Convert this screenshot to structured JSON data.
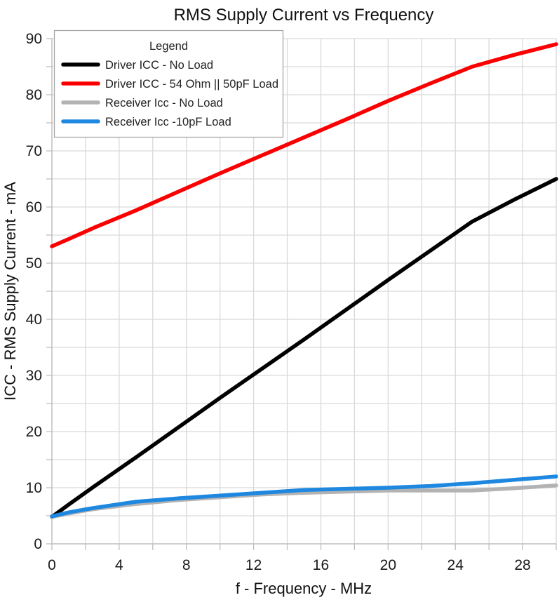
{
  "chart_data": {
    "type": "line",
    "title": "RMS Supply Current vs Frequency",
    "xlabel": "f - Frequency - MHz",
    "ylabel": "ICC - RMS Supply Current - mA",
    "xlim": [
      0,
      30
    ],
    "ylim": [
      0,
      90
    ],
    "x_minor_step": 2,
    "y_minor_step": 5,
    "x_major_ticks": [
      0,
      4,
      8,
      12,
      16,
      20,
      24,
      28
    ],
    "y_major_ticks": [
      0,
      10,
      20,
      30,
      40,
      50,
      60,
      70,
      80,
      90
    ],
    "grid": true,
    "legend": {
      "title": "Legend",
      "position": "top-left"
    },
    "style": {
      "grid_color": "#d9d9d9",
      "axis_color": "#bfbfbf",
      "legend_border_color": "#a6a6a6",
      "line_width": 5.5
    },
    "x": [
      0,
      1,
      2.5,
      5,
      7.5,
      10,
      12.5,
      15,
      17.5,
      20,
      22.5,
      25,
      27.5,
      30
    ],
    "series": [
      {
        "name": "Driver ICC - No Load",
        "color": "#000000",
        "values": [
          4.8,
          7.0,
          10.2,
          15.4,
          20.7,
          26.0,
          31.2,
          36.4,
          41.7,
          47.0,
          52.2,
          57.4,
          61.3,
          65.0
        ]
      },
      {
        "name": "Driver ICC - 54 Ohm || 50pF Load",
        "color": "#fb0000",
        "values": [
          53.0,
          54.3,
          56.3,
          59.4,
          62.7,
          66.0,
          69.2,
          72.4,
          75.6,
          78.9,
          82.0,
          85.0,
          87.1,
          89.0
        ]
      },
      {
        "name": "Receiver Icc - No Load",
        "color": "#b3b3b3",
        "values": [
          4.8,
          5.4,
          6.2,
          7.1,
          7.8,
          8.3,
          8.8,
          9.1,
          9.3,
          9.5,
          9.5,
          9.5,
          9.9,
          10.4
        ]
      },
      {
        "name": "Receiver Icc -10pF Load",
        "color": "#1e88e0",
        "values": [
          4.9,
          5.6,
          6.4,
          7.5,
          8.1,
          8.6,
          9.1,
          9.6,
          9.8,
          10.0,
          10.3,
          10.8,
          11.4,
          12.0
        ]
      }
    ]
  }
}
